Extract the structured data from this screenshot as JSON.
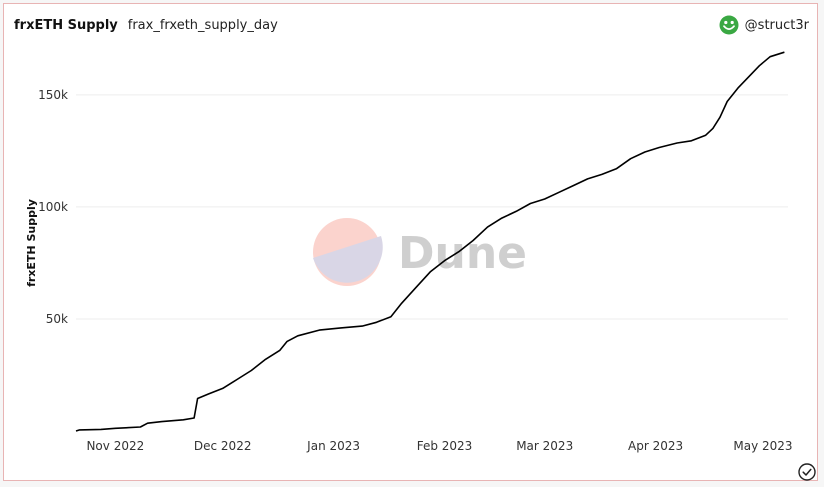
{
  "header": {
    "title": "frxETH Supply",
    "query_name": "frax_frxeth_supply_day",
    "author": "@struct3r"
  },
  "watermark": {
    "text": "Dune"
  },
  "colors": {
    "line": "#000000",
    "grid": "#eeeeee",
    "avatar": "#3aa843"
  },
  "chart_data": {
    "type": "line",
    "ylabel": "frxETH Supply",
    "ylim": [
      0,
      170000
    ],
    "y_ticks": [
      {
        "value": 50000,
        "label": "50k"
      },
      {
        "value": 100000,
        "label": "100k"
      },
      {
        "value": 150000,
        "label": "150k"
      }
    ],
    "x_ticks": [
      {
        "date": "2022-11-01",
        "label": "Nov 2022"
      },
      {
        "date": "2022-12-01",
        "label": "Dec 2022"
      },
      {
        "date": "2023-01-01",
        "label": "Jan 2023"
      },
      {
        "date": "2023-02-01",
        "label": "Feb 2023"
      },
      {
        "date": "2023-03-01",
        "label": "Mar 2023"
      },
      {
        "date": "2023-04-01",
        "label": "Apr 2023"
      },
      {
        "date": "2023-05-01",
        "label": "May 2023"
      }
    ],
    "xlim": [
      "2022-10-21",
      "2023-05-08"
    ],
    "series": [
      {
        "name": "",
        "points": [
          [
            "2022-10-21",
            0
          ],
          [
            "2022-10-22",
            500
          ],
          [
            "2022-10-28",
            700
          ],
          [
            "2022-11-01",
            1200
          ],
          [
            "2022-11-08",
            1800
          ],
          [
            "2022-11-10",
            3500
          ],
          [
            "2022-11-14",
            4200
          ],
          [
            "2022-11-20",
            5000
          ],
          [
            "2022-11-23",
            5800
          ],
          [
            "2022-11-24",
            14500
          ],
          [
            "2022-11-27",
            16500
          ],
          [
            "2022-12-01",
            19000
          ],
          [
            "2022-12-05",
            23000
          ],
          [
            "2022-12-09",
            27000
          ],
          [
            "2022-12-13",
            32000
          ],
          [
            "2022-12-17",
            36000
          ],
          [
            "2022-12-19",
            40000
          ],
          [
            "2022-12-22",
            42500
          ],
          [
            "2022-12-28",
            45000
          ],
          [
            "2023-01-03",
            46000
          ],
          [
            "2023-01-09",
            46800
          ],
          [
            "2023-01-13",
            48500
          ],
          [
            "2023-01-17",
            51000
          ],
          [
            "2023-01-20",
            57000
          ],
          [
            "2023-01-24",
            64000
          ],
          [
            "2023-01-28",
            71000
          ],
          [
            "2023-02-01",
            76000
          ],
          [
            "2023-02-05",
            80000
          ],
          [
            "2023-02-09",
            85000
          ],
          [
            "2023-02-13",
            91000
          ],
          [
            "2023-02-17",
            95000
          ],
          [
            "2023-02-21",
            98000
          ],
          [
            "2023-02-25",
            101500
          ],
          [
            "2023-03-01",
            103500
          ],
          [
            "2023-03-05",
            106500
          ],
          [
            "2023-03-09",
            109500
          ],
          [
            "2023-03-13",
            112500
          ],
          [
            "2023-03-17",
            114500
          ],
          [
            "2023-03-21",
            117000
          ],
          [
            "2023-03-25",
            121500
          ],
          [
            "2023-03-29",
            124500
          ],
          [
            "2023-04-02",
            126500
          ],
          [
            "2023-04-07",
            128500
          ],
          [
            "2023-04-11",
            129500
          ],
          [
            "2023-04-15",
            132000
          ],
          [
            "2023-04-17",
            135000
          ],
          [
            "2023-04-19",
            140000
          ],
          [
            "2023-04-21",
            147000
          ],
          [
            "2023-04-24",
            153000
          ],
          [
            "2023-04-27",
            158000
          ],
          [
            "2023-04-30",
            163000
          ],
          [
            "2023-05-03",
            167000
          ],
          [
            "2023-05-07",
            169000
          ]
        ]
      }
    ]
  }
}
